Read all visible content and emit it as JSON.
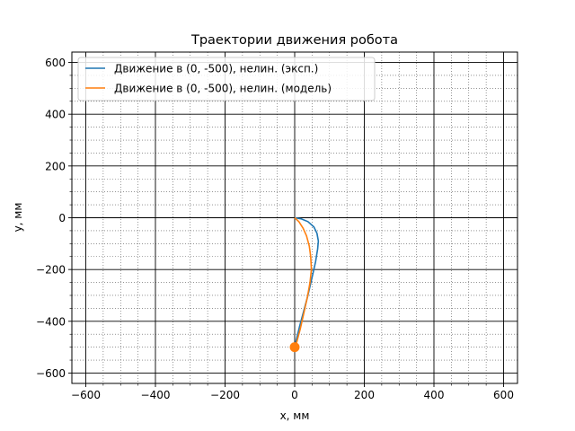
{
  "chart_data": {
    "type": "line",
    "title": "Траектории движения робота",
    "xlabel": "x, мм",
    "ylabel": "y, мм",
    "xlim": [
      -640,
      640
    ],
    "ylim": [
      -640,
      640
    ],
    "xticks": [
      -600,
      -400,
      -200,
      0,
      200,
      400,
      600
    ],
    "yticks": [
      -600,
      -400,
      -200,
      0,
      200,
      400,
      600
    ],
    "xtick_labels": [
      "−600",
      "−400",
      "−200",
      "0",
      "200",
      "400",
      "600"
    ],
    "ytick_labels": [
      "−600",
      "−400",
      "−200",
      "0",
      "200",
      "400",
      "600"
    ],
    "grid": {
      "major": true,
      "minor": true,
      "major_step": 200,
      "minor_step": 50
    },
    "legend_position": "top-left",
    "series": [
      {
        "name": "Движение в (0, -500), нелин. (эксп.)",
        "color": "#1f77b4",
        "x": [
          0,
          18,
          38,
          55,
          64,
          68,
          66,
          60,
          50,
          38,
          26,
          14,
          5,
          0
        ],
        "y": [
          0,
          -4,
          -15,
          -35,
          -60,
          -90,
          -120,
          -170,
          -230,
          -300,
          -360,
          -420,
          -470,
          -500
        ]
      },
      {
        "name": "Движение в (0, -500), нелин. (модель)",
        "color": "#ff7f0e",
        "x": [
          0,
          12,
          24,
          34,
          42,
          46,
          48,
          44,
          36,
          26,
          16,
          6,
          0
        ],
        "y": [
          0,
          -15,
          -40,
          -70,
          -110,
          -150,
          -200,
          -250,
          -310,
          -370,
          -430,
          -480,
          -500
        ]
      }
    ],
    "target_marker": {
      "x": 0,
      "y": -500,
      "color": "#ff7f0e"
    }
  }
}
